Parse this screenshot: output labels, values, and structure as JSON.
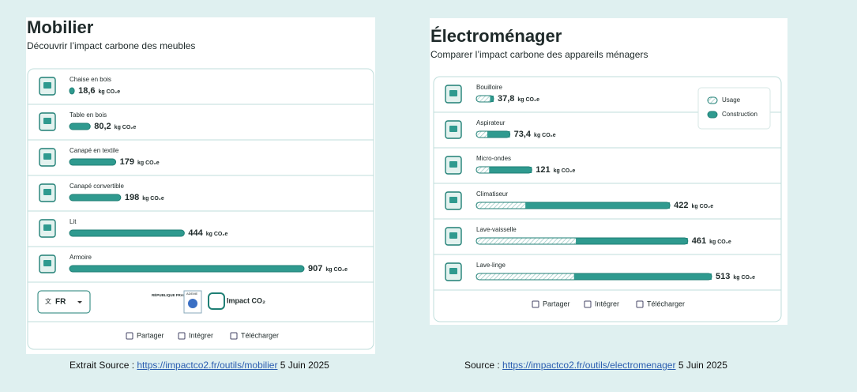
{
  "panels": [
    {
      "title": "Mobilier",
      "subtitle": "Découvrir l’impact carbone des meubles",
      "unit": "kg CO₂e",
      "items": [
        {
          "label": "Chaise en bois",
          "value": 18.6,
          "value_label": "18,6"
        },
        {
          "label": "Table en bois",
          "value": 80.2,
          "value_label": "80,2"
        },
        {
          "label": "Canapé en textile",
          "value": 179
        },
        {
          "label": "Canapé convertible",
          "value": 198
        },
        {
          "label": "Lit",
          "value": 444
        },
        {
          "label": "Armoire",
          "value": 907
        }
      ],
      "language": "FR",
      "logos": [
        "RÉPUBLIQUE FRANÇAISE",
        "ADEME",
        "Impact CO₂"
      ],
      "buttons": [
        "Partager",
        "Intégrer",
        "Télécharger"
      ]
    },
    {
      "title": "Électroménager",
      "subtitle": "Comparer l’impact carbone des appareils ménagers",
      "unit": "kg CO₂e",
      "legend": [
        "Usage",
        "Construction"
      ],
      "items": [
        {
          "label": "Bouilloire",
          "value": 37.8,
          "value_label": "37,8",
          "usage": 30,
          "construction": 7.8
        },
        {
          "label": "Aspirateur",
          "value": 73.4,
          "value_label": "73,4",
          "usage": 24,
          "construction": 49.4
        },
        {
          "label": "Micro-ondes",
          "value": 121,
          "usage": 28,
          "construction": 93
        },
        {
          "label": "Climatiseur",
          "value": 422,
          "usage": 107,
          "construction": 315
        },
        {
          "label": "Lave-vaisselle",
          "value": 461,
          "usage": 217,
          "construction": 244
        },
        {
          "label": "Lave-linge",
          "value": 513,
          "usage": 213,
          "construction": 300
        }
      ],
      "buttons": [
        "Partager",
        "Intégrer",
        "Télécharger"
      ]
    }
  ],
  "captions": [
    {
      "prefix": "Extrait Source :",
      "link": "https://impactco2.fr/outils/mobilier",
      "date": "5 Juin 2025"
    },
    {
      "prefix": "Source :",
      "link": "https://impactco2.fr/outils/electromenager",
      "date": "5 Juin 2025"
    }
  ]
}
